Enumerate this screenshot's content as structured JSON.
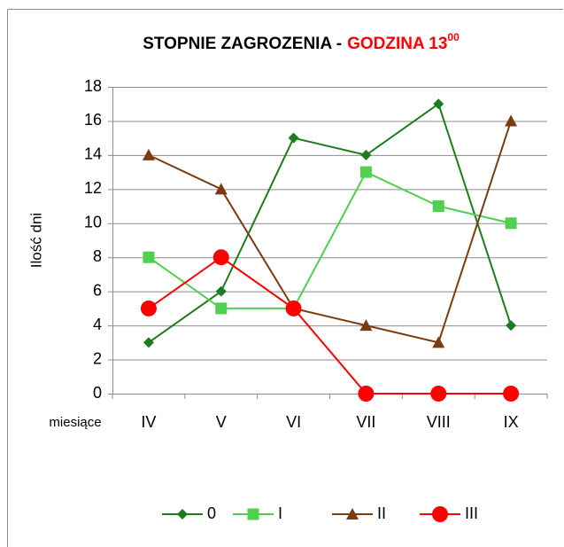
{
  "chart_data": {
    "type": "line",
    "title": {
      "main": "STOPNIE ZAGROZENIA -",
      "highlight": "GODZINA 13",
      "superscript": "00"
    },
    "y_label": "Ilość dni",
    "x_label": "miesiące",
    "categories": [
      "IV",
      "V",
      "VI",
      "VII",
      "VIII",
      "IX"
    ],
    "series": [
      {
        "name": "0",
        "color": "#1e7b1e",
        "marker": "diamond",
        "values": [
          3,
          6,
          15,
          14,
          17,
          4
        ]
      },
      {
        "name": "I",
        "color": "#4fd04f",
        "marker": "square",
        "values": [
          8,
          5,
          5,
          13,
          11,
          10
        ]
      },
      {
        "name": "II",
        "color": "#7a3b10",
        "marker": "triangle",
        "values": [
          14,
          12,
          5,
          4,
          3,
          16
        ]
      },
      {
        "name": "III",
        "color": "#ff0000",
        "marker": "circle",
        "values": [
          5,
          8,
          5,
          0,
          0,
          0
        ]
      }
    ],
    "ylim": [
      0,
      18
    ],
    "yticks": [
      0,
      2,
      4,
      6,
      8,
      10,
      12,
      14,
      16,
      18
    ],
    "grid": true
  }
}
